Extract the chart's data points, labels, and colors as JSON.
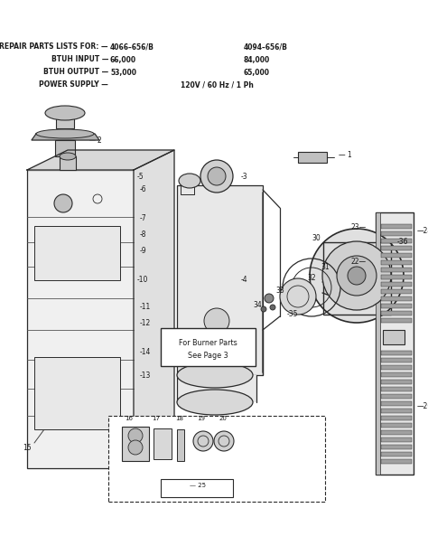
{
  "bg_color": "#ffffff",
  "line_color": "#2a2a2a",
  "text_color": "#1a1a1a",
  "header": {
    "line1_left": "REPAIR PARTS LISTS FOR: —",
    "line1_c1": "4066–656/B",
    "line1_c2": "4094–656/B",
    "line2_left": "BTUH INPUT —",
    "line2_c1": "66,000",
    "line2_c2": "84,000",
    "line3_left": "BTUH OUTPUT —",
    "line3_c1": "53,000",
    "line3_c2": "65,000",
    "line4_left": "POWER SUPPLY —",
    "line4_c2": "120V / 60 Hz / 1 Ph"
  }
}
